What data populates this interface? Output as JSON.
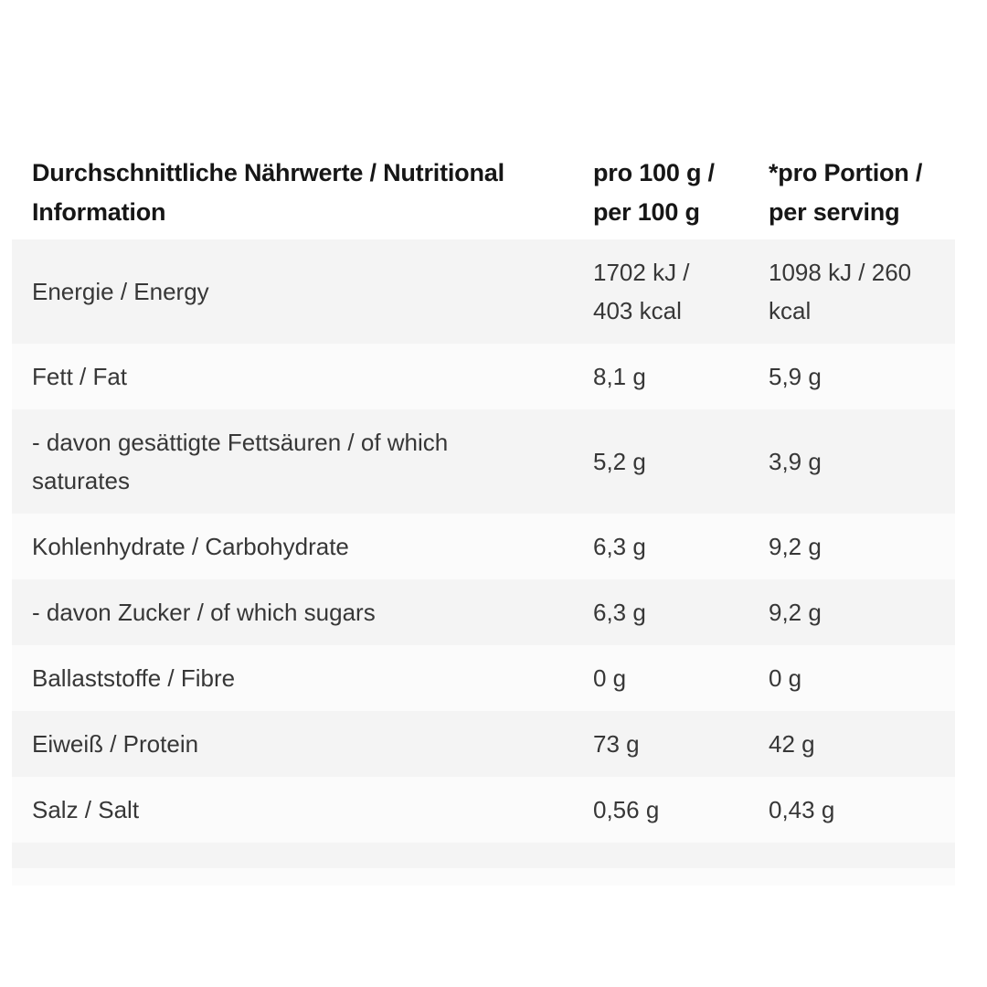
{
  "colors": {
    "page_background": "#ffffff",
    "row_shade_gray": "#f4f4f4",
    "row_shade_light": "#fbfbfb",
    "header_text": "#161616",
    "body_text": "#373737"
  },
  "table": {
    "header": {
      "label_lines": [
        "Durchschnittliche Nährwerte / Nutritional",
        "Information"
      ],
      "per100_lines": [
        "pro 100 g /",
        "per 100 g"
      ],
      "serving_lines": [
        "*pro Portion /",
        "per serving"
      ]
    },
    "rows": [
      {
        "label": "Energie / Energy",
        "per100": [
          "1702 kJ /",
          "403 kcal"
        ],
        "serving": [
          "1098 kJ / 260",
          "kcal"
        ]
      },
      {
        "label": "Fett / Fat",
        "per100": "8,1 g",
        "serving": "5,9 g"
      },
      {
        "label": [
          "- davon gesättigte Fettsäuren / of which",
          "saturates"
        ],
        "per100": "5,2 g",
        "serving": "3,9 g"
      },
      {
        "label": "Kohlenhydrate / Carbohydrate",
        "per100": "6,3 g",
        "serving": "9,2 g"
      },
      {
        "label": "- davon Zucker / of which sugars",
        "per100": "6,3 g",
        "serving": "9,2 g"
      },
      {
        "label": "Ballaststoffe / Fibre",
        "per100": "0 g",
        "serving": "0 g"
      },
      {
        "label": "Eiweiß / Protein",
        "per100": "73 g",
        "serving": "42 g"
      },
      {
        "label": "Salz / Salt",
        "per100": "0,56 g",
        "serving": "0,43 g"
      }
    ]
  }
}
